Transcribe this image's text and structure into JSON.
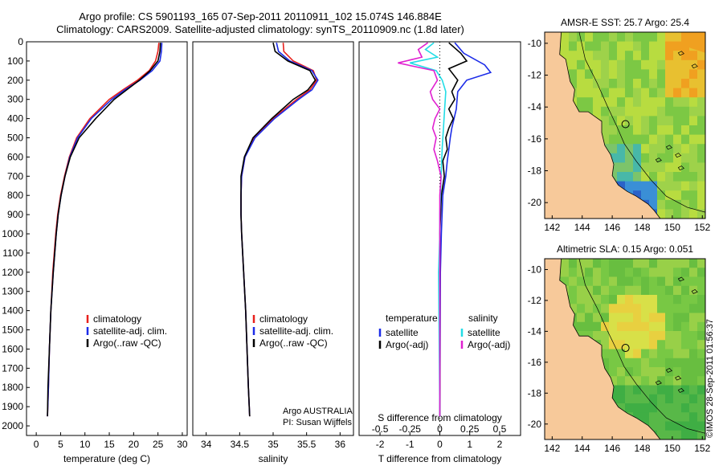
{
  "header": {
    "line1": "Argo profile: CS 5901193_165 07-Sep-2011 20110911_102 15.074S 146.884E",
    "line2": "Climatology: CARS2009. Satellite-adjusted climatology: synTS_20110909.nc (1.8d later)"
  },
  "footer_stamp": "©IMOS 28-Sep-2011 01:56:37",
  "colors": {
    "climatology": "#e8201c",
    "satellite": "#1c2ce8",
    "argo": "#000000",
    "s_satellite": "#22dde6",
    "s_argo": "#e020d0",
    "land": "#f7c99a",
    "dark_green": "#2e9a3c"
  },
  "chart_data": [
    {
      "type": "line",
      "panel": "temperature",
      "xlabel": "temperature (deg C)",
      "xlim": [
        -2,
        31
      ],
      "xticks": [
        0,
        5,
        10,
        15,
        20,
        25,
        30
      ],
      "ylim": [
        2050,
        0
      ],
      "yticks": [
        0,
        100,
        200,
        300,
        400,
        500,
        600,
        700,
        800,
        900,
        1000,
        1100,
        1200,
        1300,
        1400,
        1500,
        1600,
        1700,
        1800,
        1900,
        2000
      ],
      "legend": [
        "climatology",
        "satellite-adj. clim.",
        "Argo(..raw -QC)"
      ],
      "series": [
        {
          "name": "climatology",
          "depth": [
            5,
            50,
            100,
            150,
            200,
            250,
            300,
            400,
            500,
            600,
            700,
            800,
            900,
            1000,
            1200,
            1400,
            1600,
            1800,
            1950
          ],
          "values": [
            25.2,
            25.0,
            24.5,
            23.2,
            20.8,
            17.8,
            15.0,
            11.0,
            8.3,
            6.8,
            5.8,
            5.0,
            4.4,
            4.0,
            3.4,
            3.0,
            2.7,
            2.5,
            2.3
          ]
        },
        {
          "name": "satellite-adj. clim.",
          "depth": [
            5,
            50,
            100,
            150,
            200,
            250,
            300,
            400,
            500,
            600,
            700,
            800,
            900,
            1000,
            1200,
            1400,
            1600,
            1800,
            1950
          ],
          "values": [
            25.8,
            25.7,
            25.4,
            23.8,
            21.3,
            18.2,
            15.5,
            11.3,
            8.5,
            6.9,
            5.9,
            5.1,
            4.5,
            4.1,
            3.5,
            3.0,
            2.7,
            2.5,
            2.3
          ]
        },
        {
          "name": "Argo(..raw -QC)",
          "depth": [
            5,
            50,
            100,
            150,
            200,
            250,
            300,
            400,
            500,
            600,
            700,
            800,
            900,
            1000,
            1200,
            1400,
            1600,
            1800,
            1950
          ],
          "values": [
            25.5,
            25.4,
            25.0,
            23.4,
            21.2,
            18.6,
            16.0,
            12.2,
            8.8,
            7.0,
            5.9,
            5.1,
            4.5,
            4.1,
            3.5,
            3.0,
            2.7,
            2.4,
            2.3
          ]
        }
      ]
    },
    {
      "type": "line",
      "panel": "salinity",
      "xlabel": "salinity",
      "xlim": [
        33.8,
        36.2
      ],
      "xticks": [
        34,
        34.5,
        35,
        35.5,
        36
      ],
      "ylim": [
        2050,
        0
      ],
      "legend": [
        "climatology",
        "satellite-adj. clim.",
        "Argo(..raw -QC)"
      ],
      "note_lines": [
        "Argo AUSTRALIA",
        "PI: Susan Wijffels"
      ],
      "series": [
        {
          "name": "climatology",
          "depth": [
            5,
            50,
            100,
            150,
            200,
            250,
            300,
            400,
            500,
            600,
            700,
            800,
            900,
            1000,
            1200,
            1400,
            1600,
            1800,
            1950
          ],
          "values": [
            35.15,
            35.16,
            35.3,
            35.6,
            35.65,
            35.55,
            35.35,
            35.0,
            34.72,
            34.58,
            34.53,
            34.52,
            34.52,
            34.53,
            34.56,
            34.59,
            34.61,
            34.63,
            34.65
          ]
        },
        {
          "name": "satellite-adj. clim.",
          "depth": [
            5,
            50,
            100,
            150,
            200,
            250,
            300,
            400,
            500,
            600,
            700,
            800,
            900,
            1000,
            1200,
            1400,
            1600,
            1800,
            1950
          ],
          "values": [
            35.05,
            35.08,
            35.25,
            35.58,
            35.67,
            35.58,
            35.38,
            35.02,
            34.73,
            34.58,
            34.53,
            34.52,
            34.52,
            34.53,
            34.56,
            34.59,
            34.61,
            34.63,
            34.65
          ]
        },
        {
          "name": "Argo(..raw -QC)",
          "depth": [
            5,
            50,
            100,
            150,
            200,
            250,
            300,
            400,
            500,
            600,
            700,
            800,
            900,
            1000,
            1200,
            1400,
            1600,
            1800,
            1950
          ],
          "values": [
            35.0,
            35.03,
            35.22,
            35.55,
            35.63,
            35.52,
            35.3,
            34.98,
            34.7,
            34.57,
            34.52,
            34.52,
            34.52,
            34.53,
            34.56,
            34.59,
            34.61,
            34.63,
            34.65
          ]
        }
      ]
    },
    {
      "type": "line",
      "panel": "differences",
      "top_axis_label": "S difference from climatology",
      "top_ticks": [
        "-0.5",
        "-0.25",
        "0",
        "0.25",
        "0.5"
      ],
      "top_tick_values": [
        -0.5,
        -0.25,
        0,
        0.25,
        0.5
      ],
      "xlabel": "T difference from climatology",
      "xlim": [
        -2.7,
        2.7
      ],
      "xticks": [
        -2,
        -1,
        0,
        1,
        2
      ],
      "ylim": [
        2050,
        0
      ],
      "legend_left_title": "temperature",
      "legend_right_title": "salinity",
      "legend_left": [
        "satellite",
        "Argo(-adj)"
      ],
      "legend_right": [
        "satellite",
        "Argo(-adj)"
      ],
      "series": [
        {
          "name": "T satellite",
          "kind": "T",
          "depth": [
            5,
            60,
            120,
            160,
            200,
            260,
            350,
            450,
            500,
            560,
            620,
            700,
            800,
            1000,
            1200,
            1950
          ],
          "values": [
            0.5,
            0.8,
            1.5,
            1.7,
            0.9,
            0.6,
            0.55,
            0.4,
            0.35,
            0.3,
            0.25,
            0.2,
            0.1,
            0.05,
            0.02,
            0.0
          ]
        },
        {
          "name": "T Argo(-adj)",
          "kind": "T",
          "depth": [
            5,
            60,
            100,
            140,
            200,
            260,
            300,
            350,
            400,
            450,
            500,
            560,
            620,
            700,
            800,
            1000,
            1200,
            1950
          ],
          "values": [
            0.3,
            0.7,
            0.9,
            0.3,
            0.6,
            0.4,
            0.5,
            0.3,
            0.45,
            0.3,
            0.2,
            0.25,
            0.1,
            0.15,
            0.05,
            0.0,
            0.0,
            0.0
          ]
        },
        {
          "name": "S satellite",
          "kind": "S",
          "depth": [
            5,
            40,
            80,
            110,
            150,
            200,
            260,
            350,
            450,
            550,
            700,
            900,
            1000,
            1200,
            1950
          ],
          "values": [
            -0.05,
            -0.12,
            -0.02,
            -0.25,
            -0.03,
            0.02,
            0.05,
            0.04,
            0.03,
            0.02,
            0.01,
            0.0,
            0.0,
            -0.01,
            0.0
          ]
        },
        {
          "name": "S Argo(-adj)",
          "kind": "S",
          "depth": [
            5,
            40,
            80,
            110,
            150,
            200,
            260,
            300,
            350,
            400,
            450,
            500,
            560,
            620,
            700,
            800,
            1000,
            1200,
            1950
          ],
          "values": [
            -0.1,
            -0.18,
            -0.15,
            -0.35,
            -0.05,
            -0.02,
            -0.08,
            -0.06,
            0.0,
            -0.04,
            -0.06,
            -0.03,
            -0.05,
            -0.02,
            0.01,
            0.0,
            0.0,
            0.0,
            0.0
          ]
        }
      ]
    },
    {
      "type": "heatmap",
      "panel": "map_sst",
      "title": "AMSR-E SST: 25.7 Argo: 25.4",
      "xticks": [
        142,
        144,
        146,
        148,
        150,
        152
      ],
      "yticks": [
        -10,
        -12,
        -14,
        -16,
        -18,
        -20
      ],
      "xlim": [
        141.5,
        152.2
      ],
      "ylim": [
        -21,
        -9.3
      ],
      "argo_position": [
        146.884,
        -15.074
      ]
    },
    {
      "type": "heatmap",
      "panel": "map_sla",
      "title": "Altimetric SLA: 0.15 Argo: 0.051",
      "xticks": [
        142,
        144,
        146,
        148,
        150,
        152
      ],
      "yticks": [
        -10,
        -12,
        -14,
        -16,
        -18,
        -20
      ],
      "xlim": [
        141.5,
        152.2
      ],
      "ylim": [
        -21,
        -9.3
      ],
      "argo_position": [
        146.884,
        -15.074
      ]
    }
  ]
}
